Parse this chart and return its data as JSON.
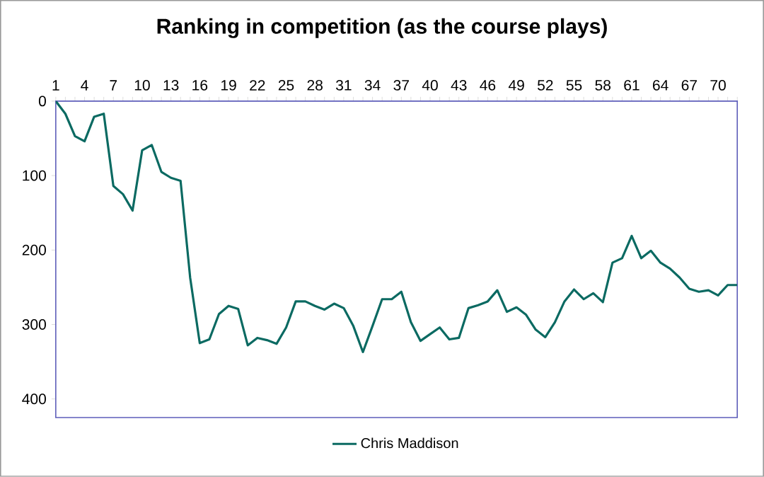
{
  "chart_data": {
    "type": "line",
    "title": "Ranking in competition (as the course plays)",
    "categories": [
      "1",
      null,
      null,
      "4",
      null,
      null,
      "7",
      null,
      null,
      "10",
      null,
      null,
      "13",
      null,
      null,
      "16",
      null,
      null,
      "19",
      null,
      null,
      "22",
      null,
      null,
      "25",
      null,
      null,
      "28",
      null,
      null,
      "31",
      null,
      null,
      "34",
      null,
      null,
      "37",
      null,
      null,
      "40",
      null,
      null,
      "43",
      null,
      null,
      "46",
      null,
      null,
      "49",
      null,
      null,
      "52",
      null,
      null,
      "55",
      null,
      null,
      "58",
      null,
      null,
      "61",
      null,
      null,
      "64",
      null,
      null,
      "67",
      null,
      null,
      "70",
      null,
      null
    ],
    "series": [
      {
        "name": "Chris Maddison",
        "color": "#0b6a62",
        "values": [
          0,
          17,
          47,
          54,
          21,
          17,
          114,
          125,
          147,
          66,
          59,
          95,
          103,
          107,
          237,
          325,
          320,
          286,
          275,
          279,
          328,
          318,
          321,
          326,
          304,
          269,
          269,
          275,
          280,
          272,
          278,
          302,
          337,
          302,
          266,
          266,
          256,
          297,
          322,
          313,
          304,
          320,
          318,
          278,
          274,
          269,
          254,
          283,
          277,
          287,
          307,
          317,
          297,
          269,
          253,
          266,
          258,
          270,
          217,
          211,
          181,
          211,
          201,
          217,
          225,
          237,
          252,
          256,
          254,
          261,
          247,
          247
        ]
      }
    ],
    "ylim": [
      425,
      0
    ],
    "yticks": [
      0,
      100,
      200,
      300,
      400
    ],
    "legend": "bottom"
  }
}
